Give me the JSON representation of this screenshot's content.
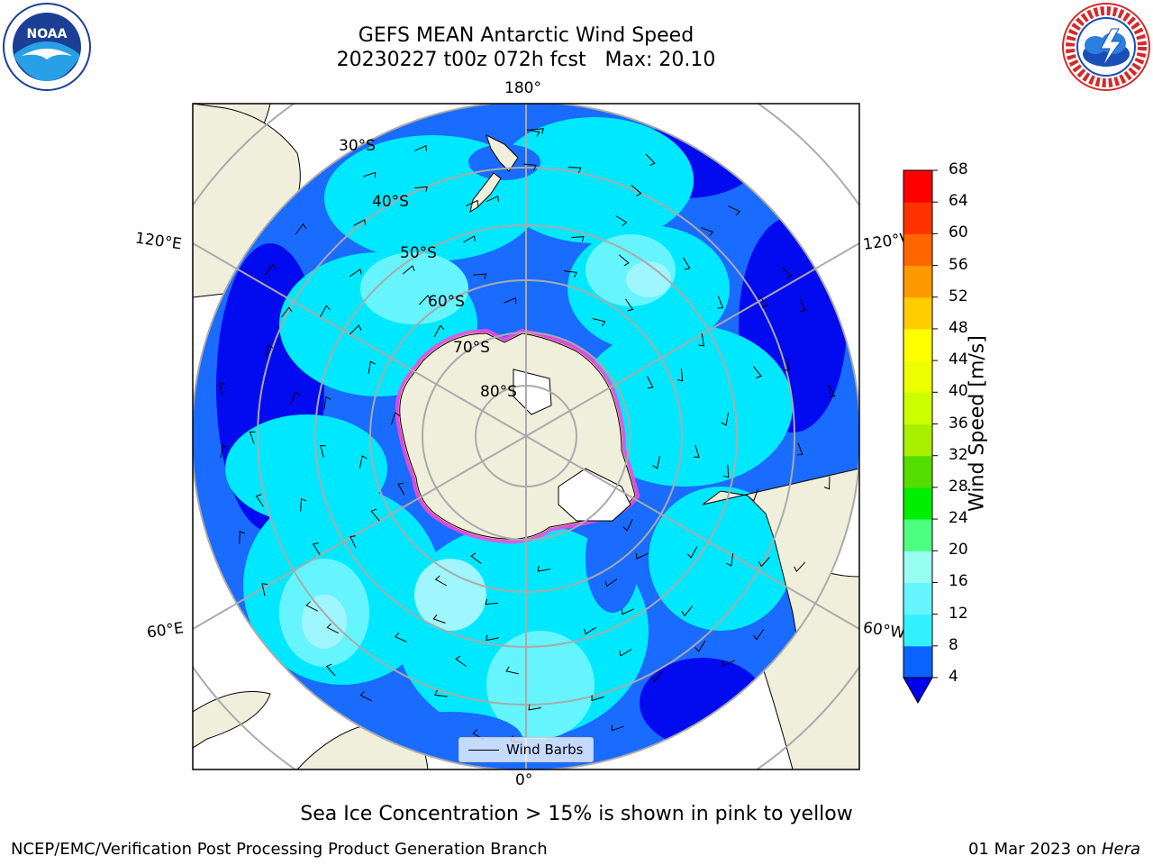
{
  "title_line1": "GEFS MEAN Antarctic Wind Speed",
  "title_line2": "20230227 t00z 072h fcst   Max: 20.10",
  "longitude_labels": {
    "top": "180°",
    "bottom": "0°",
    "upper_left": "120°E",
    "upper_right": "120°W",
    "lower_left": "60°E",
    "lower_right": "60°W"
  },
  "latitude_labels": [
    "30°S",
    "40°S",
    "50°S",
    "60°S",
    "70°S",
    "80°S"
  ],
  "colorbar": {
    "label": "Wind Speed [m/s]",
    "ticks": [
      4,
      8,
      12,
      16,
      20,
      24,
      28,
      32,
      36,
      40,
      44,
      48,
      52,
      56,
      60,
      64,
      68
    ],
    "colors": [
      "#0b63ff",
      "#00e6ff",
      "#33f0ff",
      "#66f5ff",
      "#99fff2",
      "#4dff80",
      "#00ee00",
      "#55dd00",
      "#aaee00",
      "#ccff00",
      "#eeff00",
      "#ffff00",
      "#ffcc00",
      "#ff9900",
      "#ff6600",
      "#ff3300",
      "#ff0000"
    ],
    "under_color": "#0000ee"
  },
  "legend": {
    "label": "Wind Barbs"
  },
  "caption": "Sea Ice Concentration > 15% is shown in pink to yellow",
  "footer_left": "NCEP/EMC/Verification Post Processing Product Generation Branch",
  "footer_date": "01 Mar 2023 on",
  "footer_machine": "Hera",
  "colors": {
    "land": "#efefdc",
    "ocean_low": "#1a6bff",
    "ocean_mid": "#00e8ff",
    "ocean_high": "#9ff6ff",
    "grid": "#aaaaaa",
    "sea_ice": "#ff44dd"
  }
}
